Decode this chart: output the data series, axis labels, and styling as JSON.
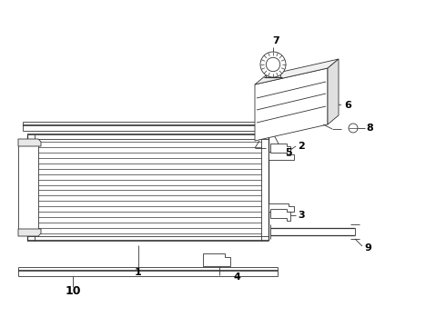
{
  "bg_color": "#ffffff",
  "line_color": "#333333",
  "label_color": "#000000",
  "lw_thin": 0.6,
  "lw_med": 0.9,
  "lw_thick": 1.2,
  "label_fontsize": 7.5
}
